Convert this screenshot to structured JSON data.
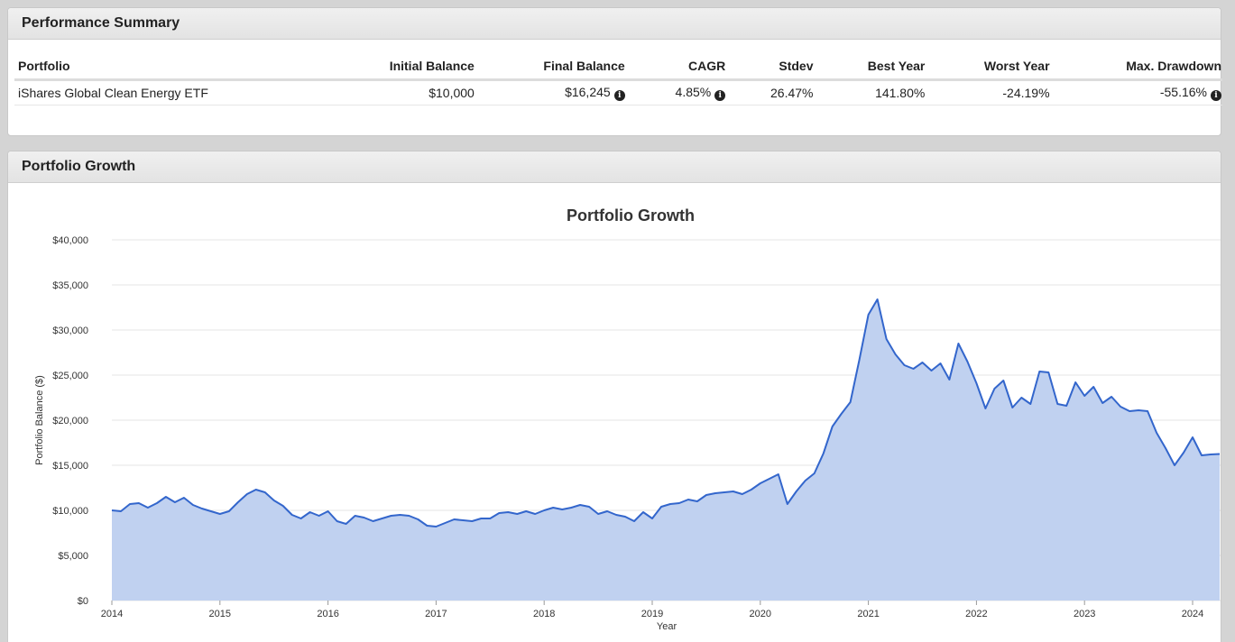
{
  "summary": {
    "title": "Performance Summary",
    "columns": [
      "Portfolio",
      "Initial Balance",
      "Final Balance",
      "CAGR",
      "Stdev",
      "Best Year",
      "Worst Year",
      "Max. Drawdown"
    ],
    "row": {
      "portfolio": "iShares Global Clean Energy ETF",
      "initial_balance": "$10,000",
      "final_balance": "$16,245",
      "cagr": "4.85%",
      "stdev": "26.47%",
      "best_year": "141.80%",
      "worst_year": "-24.19%",
      "max_drawdown": "-55.16%"
    },
    "info_glyph": "i"
  },
  "growth": {
    "title": "Portfolio Growth"
  },
  "colors": {
    "line": "#3366cc",
    "fill": "#c0d1f0",
    "grid": "#e6e6e6"
  },
  "chart_data": {
    "type": "area",
    "title": "Portfolio Growth",
    "xlabel": "Year",
    "ylabel": "Portfolio Balance ($)",
    "ylim": [
      0,
      40000
    ],
    "yticks": [
      0,
      5000,
      10000,
      15000,
      20000,
      25000,
      30000,
      35000,
      40000
    ],
    "ytick_labels": [
      "$0",
      "$5,000",
      "$10,000",
      "$15,000",
      "$20,000",
      "$25,000",
      "$30,000",
      "$35,000",
      "$40,000"
    ],
    "xticks": [
      "2014",
      "2015",
      "2016",
      "2017",
      "2018",
      "2019",
      "2020",
      "2021",
      "2022",
      "2023",
      "2024"
    ],
    "x_start": "2014-01",
    "x_end": "2024-04",
    "grid": true,
    "legend": "none",
    "series": [
      {
        "values": [
          10000,
          9900,
          10700,
          10800,
          10300,
          10800,
          11500,
          10900,
          11400,
          10600,
          10200,
          9900,
          9600,
          9900,
          10900,
          11800,
          12300,
          12000,
          11100,
          10500,
          9500,
          9100,
          9800,
          9400,
          9900,
          8800,
          8500,
          9400,
          9200,
          8800,
          9100,
          9400,
          9500,
          9400,
          9000,
          8300,
          8200,
          8600,
          9000,
          8900,
          8800,
          9100,
          9100,
          9700,
          9800,
          9600,
          9900,
          9600,
          10000,
          10300,
          10100,
          10300,
          10600,
          10400,
          9600,
          9900,
          9500,
          9300,
          8800,
          9800,
          9100,
          10400,
          10700,
          10800,
          11200,
          11000,
          11700,
          11900,
          12000,
          12100,
          11800,
          12300,
          13000,
          13500,
          14000,
          10700,
          12100,
          13300,
          14100,
          16300,
          19300,
          20700,
          22000,
          26700,
          31700,
          33400,
          29000,
          27300,
          26100,
          25700,
          26400,
          25500,
          26300,
          24500,
          28500,
          26500,
          24100,
          21300,
          23500,
          24400,
          21400,
          22500,
          21800,
          25400,
          25300,
          21800,
          21600,
          24200,
          22700,
          23700,
          21900,
          22600,
          21500,
          21000,
          21100,
          21000,
          18600,
          16900,
          15000,
          16400,
          18100,
          16100,
          16200,
          16245
        ]
      }
    ]
  }
}
